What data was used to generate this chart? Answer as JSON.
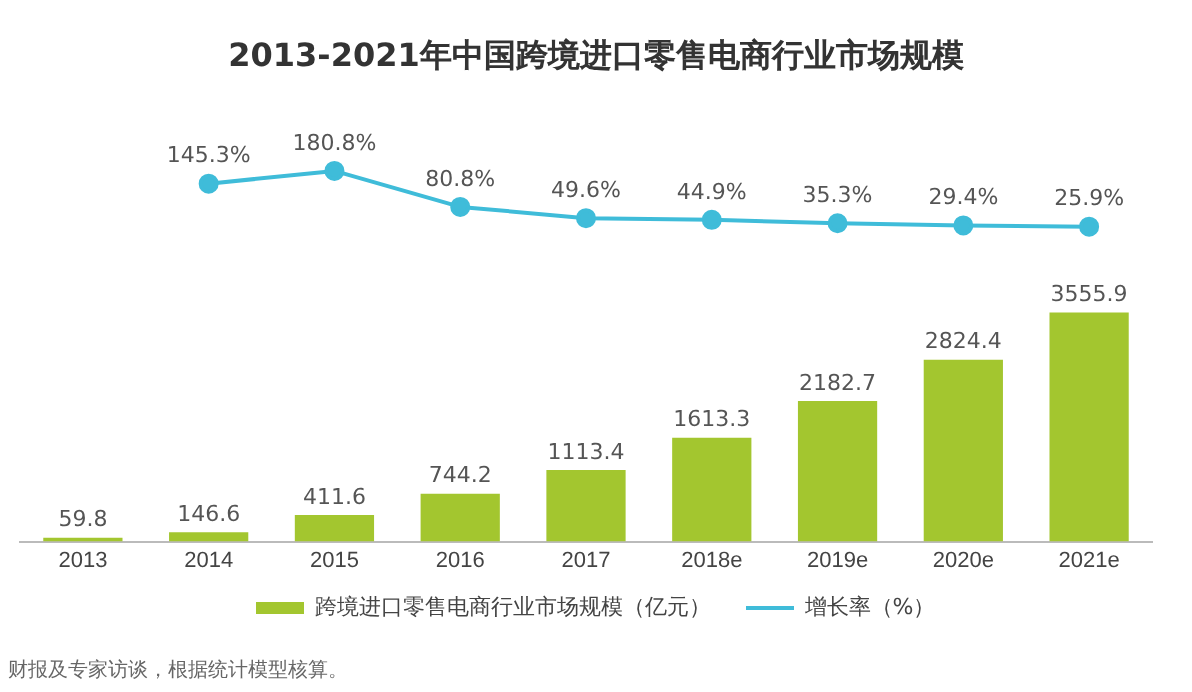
{
  "chart_data": [
    {
      "type": "line",
      "title": "2013-2021年中国跨境进口零售电商行业市场规模",
      "categories": [
        null,
        null,
        null,
        null,
        null,
        null,
        null,
        null,
        null
      ],
      "series": [
        {
          "name": "增长率（%）",
          "color": "#3fbcd9",
          "values": [
            null,
            145.3,
            180.8,
            80.8,
            49.6,
            44.9,
            35.3,
            29.4,
            25.9
          ],
          "value_labels": [
            null,
            "145.3%",
            "180.8%",
            "80.8%",
            "49.6%",
            "44.9%",
            "35.3%",
            "29.4%",
            "25.9%"
          ]
        }
      ],
      "tick_labels": false,
      "grid": false,
      "legend": "bottom",
      "marker": "circle",
      "line_style": "solid"
    },
    {
      "type": "bar",
      "categories": [
        "2013",
        "2014",
        "2015",
        "2016",
        "2017",
        "2018e",
        "2019e",
        "2020e",
        "2021e"
      ],
      "series": [
        {
          "name": "跨境进口零售电商行业市场规模（亿元）",
          "color": "#a3c62f",
          "values": [
            59.8,
            146.6,
            411.6,
            744.2,
            1113.4,
            1613.3,
            2182.7,
            2824.4,
            3555.9
          ]
        }
      ],
      "tick_labels": "x",
      "data_labels": true,
      "grid": false,
      "legend": "bottom",
      "annotations": [
        "财报及专家访谈，根据统计模型核算。"
      ]
    }
  ]
}
